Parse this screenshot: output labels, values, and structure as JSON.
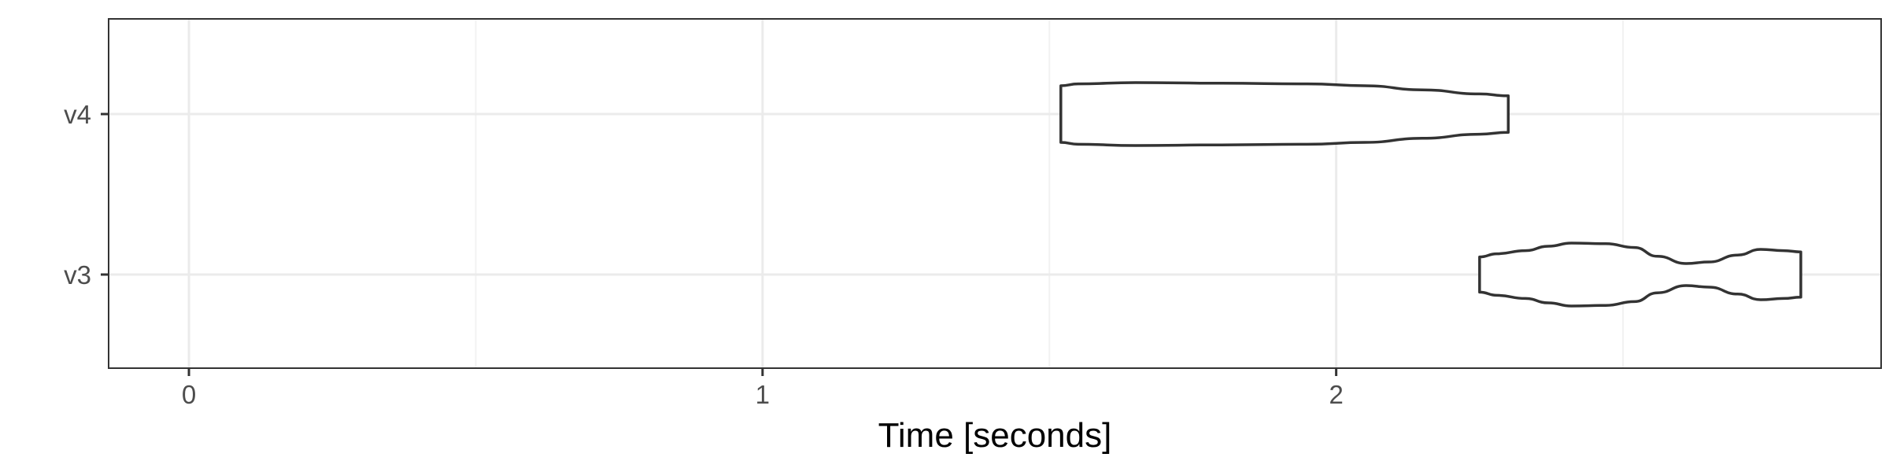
{
  "chart_data": {
    "type": "violin",
    "title": "",
    "xlabel": "Time [seconds]",
    "ylabel": "",
    "xlim": [
      -0.14,
      2.95
    ],
    "x_ticks": [
      0,
      1,
      2
    ],
    "x_tick_labels": [
      "0",
      "1",
      "2"
    ],
    "x_minor_ticks": [
      0.5,
      1.5,
      2.5
    ],
    "categories": [
      "v3",
      "v4"
    ],
    "grid": true,
    "legend": "none",
    "series": [
      {
        "category": "v4",
        "min": 1.52,
        "max": 2.3,
        "profile": [
          [
            1.52,
            0.9
          ],
          [
            1.55,
            0.96
          ],
          [
            1.65,
            1.0
          ],
          [
            1.8,
            0.98
          ],
          [
            1.95,
            0.96
          ],
          [
            2.05,
            0.9
          ],
          [
            2.15,
            0.77
          ],
          [
            2.25,
            0.64
          ],
          [
            2.3,
            0.58
          ]
        ]
      },
      {
        "category": "v3",
        "min": 2.25,
        "max": 2.81,
        "profile": [
          [
            2.25,
            0.56
          ],
          [
            2.28,
            0.66
          ],
          [
            2.33,
            0.76
          ],
          [
            2.37,
            0.9
          ],
          [
            2.41,
            1.0
          ],
          [
            2.47,
            0.98
          ],
          [
            2.52,
            0.86
          ],
          [
            2.56,
            0.58
          ],
          [
            2.61,
            0.35
          ],
          [
            2.65,
            0.4
          ],
          [
            2.7,
            0.62
          ],
          [
            2.74,
            0.8
          ],
          [
            2.78,
            0.76
          ],
          [
            2.81,
            0.72
          ]
        ]
      }
    ],
    "colors": {
      "outline": "#333333",
      "fill": "#ffffff",
      "grid_major": "#ebebeb",
      "grid_minor": "#f2f2f2",
      "panel_border": "#333333",
      "tick_text": "#4d4d4d"
    }
  }
}
